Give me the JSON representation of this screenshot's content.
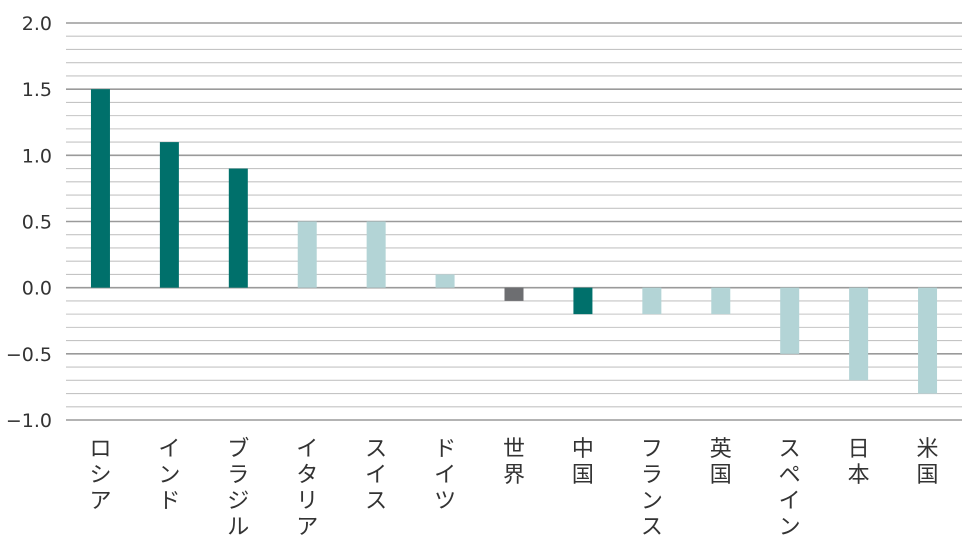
{
  "chart_data": {
    "type": "bar",
    "title": "",
    "xlabel": "",
    "ylabel": "",
    "ylim": [
      -1.0,
      2.0
    ],
    "grid": true,
    "y_ticks": [
      2.0,
      1.5,
      1.0,
      0.5,
      0.0,
      -0.5,
      -1.0
    ],
    "y_tick_labels": [
      "2.0",
      "1.5",
      "1.0",
      "0.5",
      "0.0",
      "−0.5",
      "−1.0"
    ],
    "categories": [
      "ロシア",
      "インド",
      "ブラジル",
      "イタリア",
      "スイス",
      "ドイツ",
      "世界",
      "中国",
      "フランス",
      "英国",
      "スペイン",
      "日本",
      "米国"
    ],
    "values": [
      1.5,
      1.1,
      0.9,
      0.5,
      0.5,
      0.1,
      -0.1,
      -0.2,
      -0.2,
      -0.2,
      -0.5,
      -0.7,
      -0.8
    ],
    "bar_colors": [
      "#00706b",
      "#00706b",
      "#00706b",
      "#b3d4d6",
      "#b3d4d6",
      "#b3d4d6",
      "#6d6e71",
      "#00706b",
      "#b3d4d6",
      "#b3d4d6",
      "#b3d4d6",
      "#b3d4d6",
      "#b3d4d6"
    ]
  }
}
